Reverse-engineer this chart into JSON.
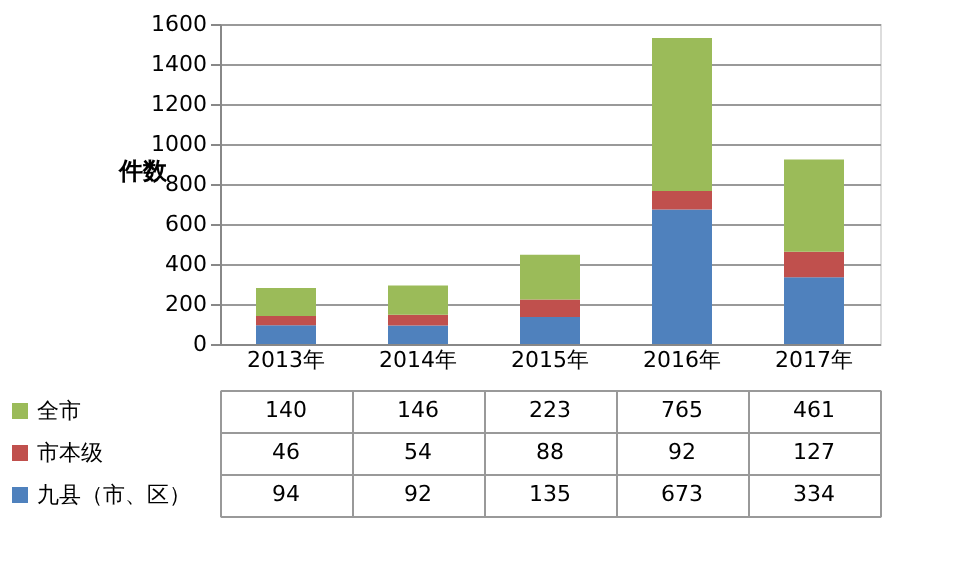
{
  "chart_data": {
    "type": "bar",
    "stacked": true,
    "ylabel": "件数",
    "categories": [
      "2013年",
      "2014年",
      "2015年",
      "2016年",
      "2017年"
    ],
    "series": [
      {
        "name": "九县（市、区）",
        "color": "#4f81bd",
        "values": [
          94,
          92,
          135,
          673,
          334
        ]
      },
      {
        "name": "市本级",
        "color": "#c0504d",
        "values": [
          46,
          54,
          88,
          92,
          127
        ]
      },
      {
        "name": "全市",
        "color": "#9bbb59",
        "values": [
          140,
          146,
          223,
          765,
          461
        ]
      }
    ],
    "ylim": [
      0,
      1600
    ],
    "yticks": [
      0,
      200,
      400,
      600,
      800,
      1000,
      1200,
      1400,
      1600
    ],
    "grid": "y",
    "data_labels": true,
    "legend": "bottom"
  }
}
